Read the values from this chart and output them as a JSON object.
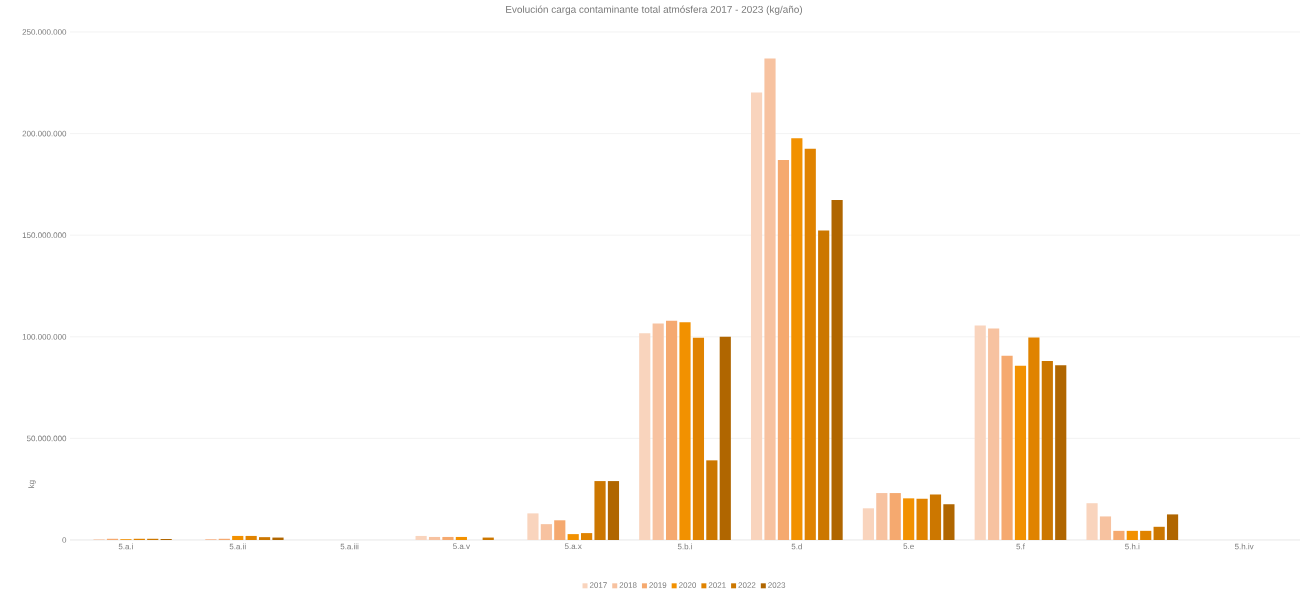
{
  "chart_data": {
    "type": "bar",
    "title": "Evolución carga contaminante total atmósfera 2017 - 2023 (kg/año)",
    "ylabel": "kg",
    "categories": [
      "5.a.i",
      "5.a.ii",
      "5.a.iii",
      "5.a.v",
      "5.a.x",
      "5.b.i",
      "5.d",
      "5.e",
      "5.f",
      "5.h.i",
      "5.h.iv"
    ],
    "series": [
      {
        "name": "2017",
        "color": "#f9d4bd",
        "values": [
          null,
          null,
          null,
          2000000,
          13100000,
          101700000,
          220200000,
          15600000,
          105600000,
          18100000,
          null
        ]
      },
      {
        "name": "2018",
        "color": "#f7c2a0",
        "values": [
          300000,
          500000,
          null,
          1500000,
          7800000,
          106500000,
          236900000,
          23100000,
          104100000,
          11600000,
          null
        ]
      },
      {
        "name": "2019",
        "color": "#f5a96f",
        "values": [
          600000,
          600000,
          null,
          1500000,
          9700000,
          107900000,
          187000000,
          23100000,
          90700000,
          4500000,
          null
        ]
      },
      {
        "name": "2020",
        "color": "#f29100",
        "values": [
          400000,
          2000000,
          null,
          1500000,
          2900000,
          107100000,
          197700000,
          20500000,
          85700000,
          4500000,
          null
        ]
      },
      {
        "name": "2021",
        "color": "#e08300",
        "values": [
          600000,
          2000000,
          null,
          null,
          3400000,
          99500000,
          192600000,
          20300000,
          99700000,
          4500000,
          null
        ]
      },
      {
        "name": "2022",
        "color": "#cc7700",
        "values": [
          600000,
          1400000,
          null,
          1200000,
          29000000,
          39200000,
          152300000,
          22400000,
          88100000,
          6500000,
          null
        ]
      },
      {
        "name": "2023",
        "color": "#b06600",
        "values": [
          500000,
          1200000,
          null,
          null,
          29000000,
          100000000,
          167300000,
          17600000,
          86000000,
          12600000,
          null
        ]
      }
    ],
    "ylim": [
      0,
      250000000
    ],
    "yticks": [
      {
        "value": 0,
        "label": "0"
      },
      {
        "value": 50000000,
        "label": "50.000.000"
      },
      {
        "value": 100000000,
        "label": "100.000.000"
      },
      {
        "value": 150000000,
        "label": "150.000.000"
      },
      {
        "value": 200000000,
        "label": "200.000.000"
      },
      {
        "value": 250000000,
        "label": "250.000.000"
      }
    ],
    "grid": "y",
    "legend": "bottom"
  }
}
